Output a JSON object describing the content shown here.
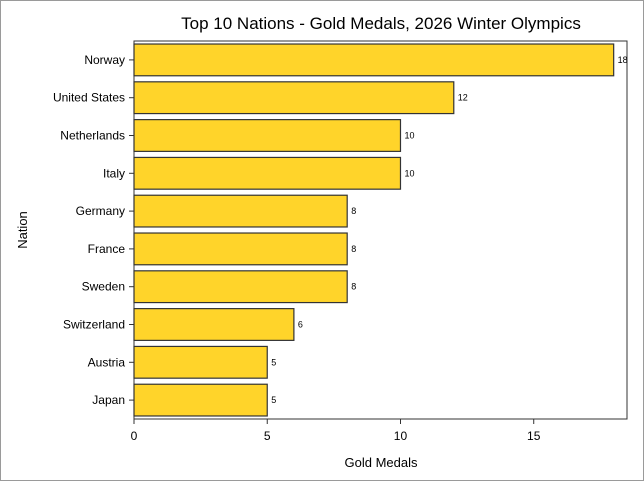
{
  "chart_data": {
    "type": "bar",
    "orientation": "horizontal",
    "title": "Top 10 Nations - Gold Medals, 2026 Winter Olympics",
    "xlabel": "Gold Medals",
    "ylabel": "Nation",
    "categories": [
      "Norway",
      "United States",
      "Netherlands",
      "Italy",
      "Germany",
      "France",
      "Sweden",
      "Switzerland",
      "Austria",
      "Japan"
    ],
    "values": [
      18,
      12,
      10,
      10,
      8,
      8,
      8,
      6,
      5,
      5
    ],
    "xlim": [
      0,
      18.5
    ],
    "xticks": [
      0,
      5,
      10,
      15
    ],
    "grid": false,
    "bar_color": "#FFD42A",
    "bar_edge_color": "#333333"
  }
}
